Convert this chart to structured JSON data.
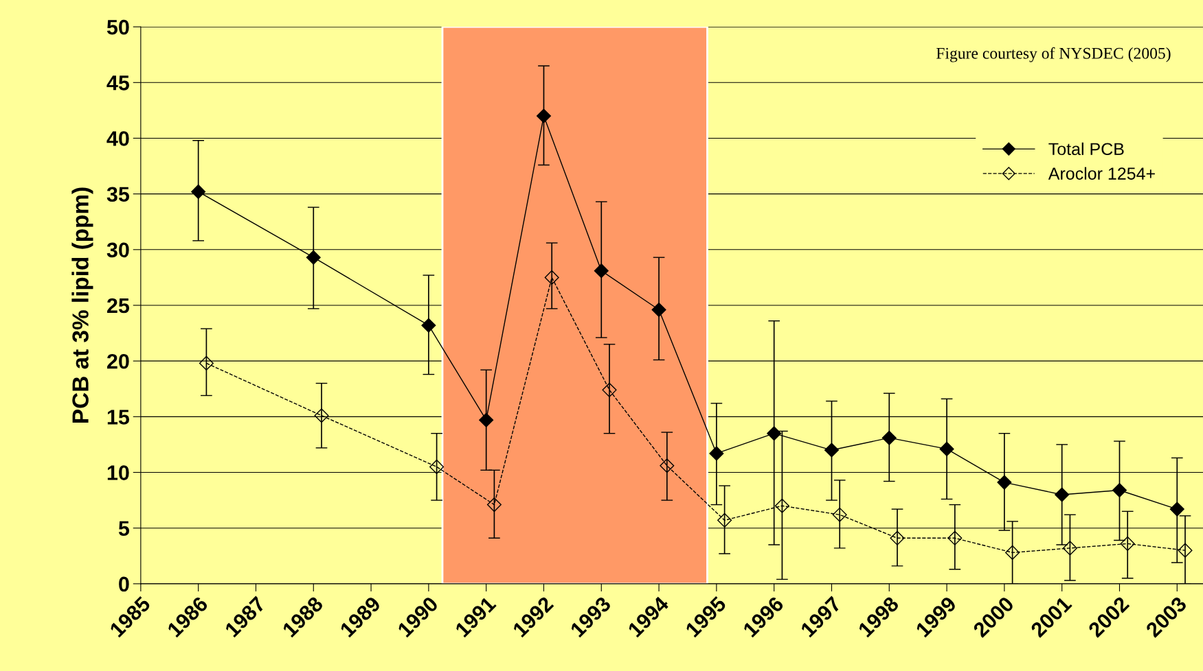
{
  "chart_data": {
    "type": "line",
    "ylabel": "PCB at 3% lipid (ppm)",
    "annotations": [
      "Figure courtesy of NYSDEC (2005)"
    ],
    "xlim": [
      1985,
      2003.45
    ],
    "xticks": [
      1985,
      1986,
      1987,
      1988,
      1989,
      1990,
      1991,
      1992,
      1993,
      1994,
      1995,
      1996,
      1997,
      1998,
      1999,
      2000,
      2001,
      2002,
      2003
    ],
    "ylim": [
      0,
      50
    ],
    "yticks": [
      0,
      5,
      10,
      15,
      20,
      25,
      30,
      35,
      40,
      45,
      50
    ],
    "grid": "y",
    "legend": "top right",
    "bands": [
      {
        "axis": "x",
        "from": 1990.24,
        "to": 1994.84,
        "color": "#ff9966"
      }
    ],
    "series": [
      {
        "name": "Total PCB",
        "color": "#000000",
        "marker": "diamond",
        "line_style": "solid",
        "x": [
          1986,
          1988,
          1990,
          1991,
          1992,
          1993,
          1994,
          1995,
          1996,
          1997,
          1998,
          1999,
          2000,
          2001,
          2002,
          2003
        ],
        "values": [
          35.2,
          29.3,
          23.2,
          14.7,
          42.0,
          28.1,
          24.6,
          11.7,
          13.5,
          12.0,
          13.1,
          12.1,
          9.1,
          8.0,
          8.4,
          6.7
        ],
        "errors": [
          [
            30.8,
            39.8
          ],
          [
            24.7,
            33.8
          ],
          [
            18.8,
            27.7
          ],
          [
            10.2,
            19.2
          ],
          [
            37.6,
            46.5
          ],
          [
            22.1,
            34.3
          ],
          [
            20.1,
            29.3
          ],
          [
            7.1,
            16.2
          ],
          [
            3.5,
            23.6
          ],
          [
            7.5,
            16.4
          ],
          [
            9.2,
            17.1
          ],
          [
            7.6,
            16.6
          ],
          [
            4.8,
            13.5
          ],
          [
            3.5,
            12.5
          ],
          [
            3.9,
            12.8
          ],
          [
            1.9,
            11.3
          ]
        ]
      },
      {
        "name": "Aroclor 1254+",
        "color": "#000000",
        "marker": "diamond",
        "line_style": "dashed",
        "x": [
          1986.14,
          1988.14,
          1990.14,
          1991.14,
          1992.14,
          1993.14,
          1994.14,
          1995.14,
          1996.14,
          1997.14,
          1998.14,
          1999.14,
          2000.14,
          2001.14,
          2002.14,
          2003.14
        ],
        "values": [
          19.8,
          15.1,
          10.5,
          7.1,
          27.5,
          17.4,
          10.6,
          5.7,
          7.0,
          6.2,
          4.1,
          4.1,
          2.8,
          3.2,
          3.6,
          3.0
        ],
        "errors": [
          [
            16.9,
            22.9
          ],
          [
            12.2,
            18.0
          ],
          [
            7.5,
            13.5
          ],
          [
            4.1,
            10.2
          ],
          [
            24.7,
            30.6
          ],
          [
            13.5,
            21.5
          ],
          [
            7.5,
            13.6
          ],
          [
            2.7,
            8.8
          ],
          [
            0.4,
            13.7
          ],
          [
            3.2,
            9.3
          ],
          [
            1.6,
            6.7
          ],
          [
            1.3,
            7.1
          ],
          [
            0,
            5.6
          ],
          [
            0.3,
            6.2
          ],
          [
            0.5,
            6.5
          ],
          [
            0,
            6.1
          ]
        ]
      }
    ]
  }
}
